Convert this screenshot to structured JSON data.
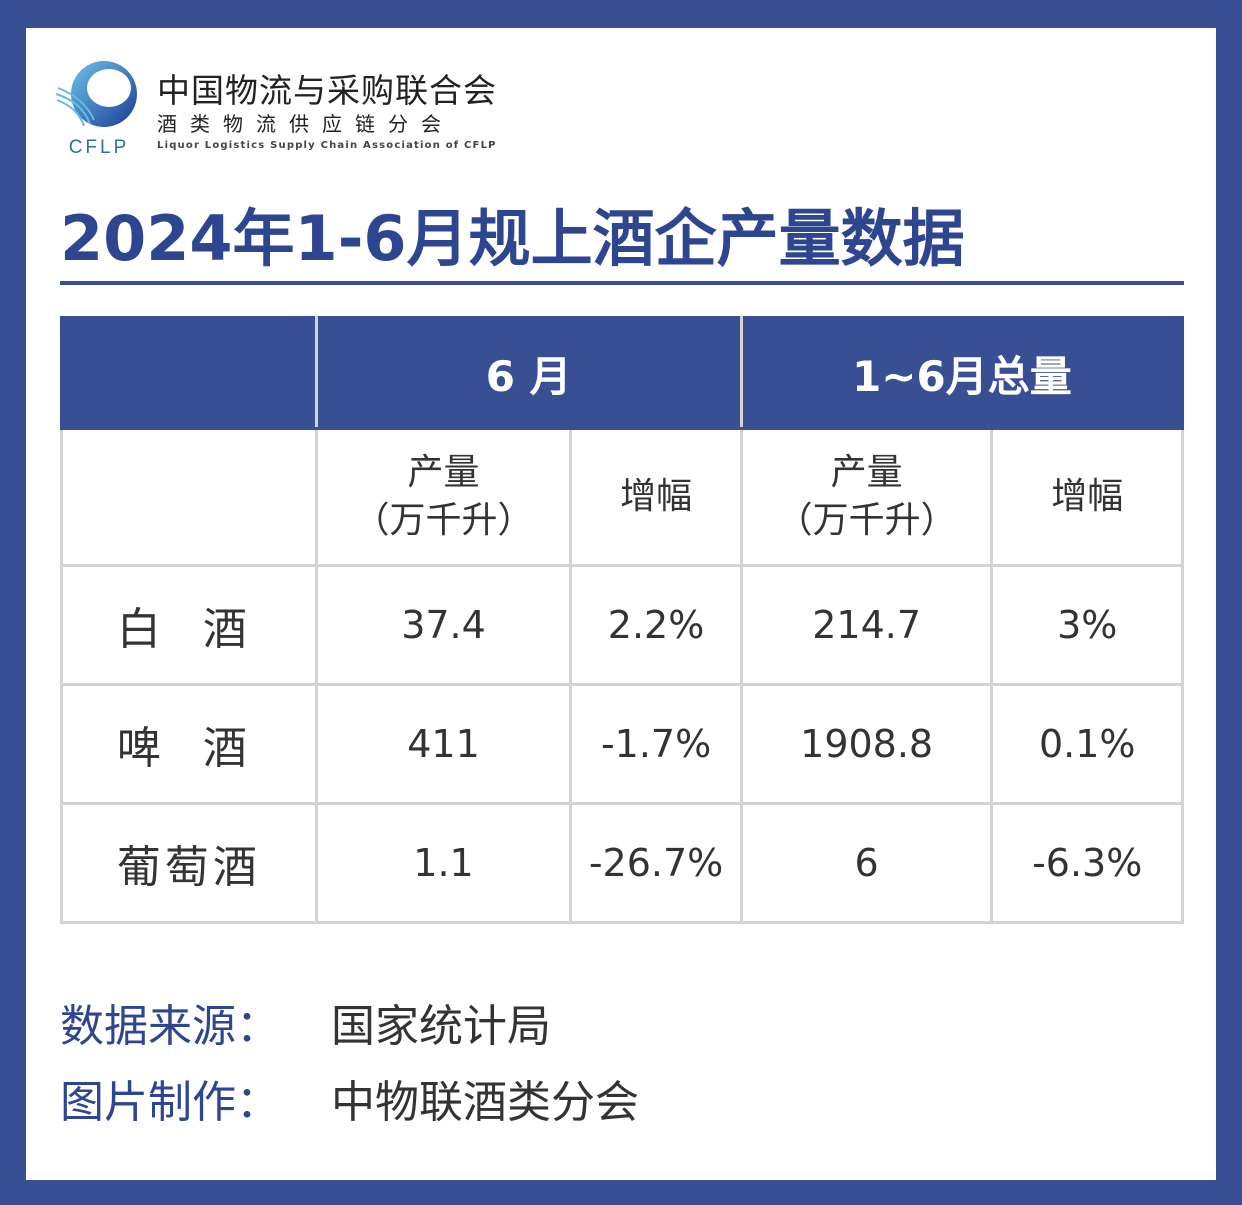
{
  "header": {
    "org_name_cn": "中国物流与采购联合会",
    "org_sub_cn": "酒类物流供应链分会",
    "org_name_en": "Liquor Logistics Supply Chain Association of CFLP",
    "logo_text": "CFLP",
    "title": "2024年1-6月规上酒企产量数据"
  },
  "table": {
    "group_headers": [
      "",
      "6 月",
      "1~6月总量"
    ],
    "sub_headers": {
      "output_line1": "产量",
      "output_line2": "（万千升）",
      "growth": "增幅"
    },
    "rows": [
      {
        "name": "白 酒",
        "june_output": "37.4",
        "june_growth": "2.2%",
        "total_output": "214.7",
        "total_growth": "3%"
      },
      {
        "name": "啤 酒",
        "june_output": "411",
        "june_growth": "-1.7%",
        "total_output": "1908.8",
        "total_growth": "0.1%"
      },
      {
        "name": "葡萄酒",
        "june_output": "1.1",
        "june_growth": "-26.7%",
        "total_output": "6",
        "total_growth": "-6.3%"
      }
    ]
  },
  "footer": {
    "source_label": "数据来源：",
    "source_value": "国家统计局",
    "maker_label": "图片制作：",
    "maker_value": "中物联酒类分会"
  },
  "colors": {
    "brand": "#384f94",
    "title": "#2e4590",
    "border": "#d3d3d3"
  }
}
